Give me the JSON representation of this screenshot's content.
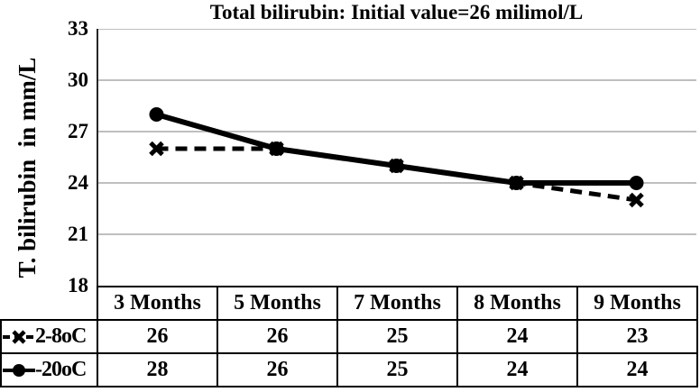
{
  "chart_data": {
    "type": "line",
    "title": "Total bilirubin: Initial value=26 milimol/L",
    "ylabel": "T. bilirubin  in mm/L",
    "xlabel": "",
    "categories": [
      "3 Months",
      "5 Months",
      "7 Months",
      "8 Months",
      "9 Months"
    ],
    "series": [
      {
        "name": "2-8oC",
        "values": [
          26,
          26,
          25,
          24,
          23
        ],
        "line_style": "dashed",
        "marker": "x"
      },
      {
        "name": "-20oC",
        "values": [
          28,
          26,
          25,
          24,
          24
        ],
        "line_style": "solid",
        "marker": "circle"
      }
    ],
    "y_ticks": [
      33,
      30,
      27,
      24,
      21,
      18
    ],
    "ylim": [
      18,
      33
    ],
    "grid": true,
    "legend_position": "table-left",
    "data_table_shown": true,
    "colors": {
      "series": "#000000",
      "gridline": "#bfbfbf",
      "axis": "#262626",
      "table_border": "#000000",
      "background": "#ffffff",
      "text": "#000000"
    }
  }
}
